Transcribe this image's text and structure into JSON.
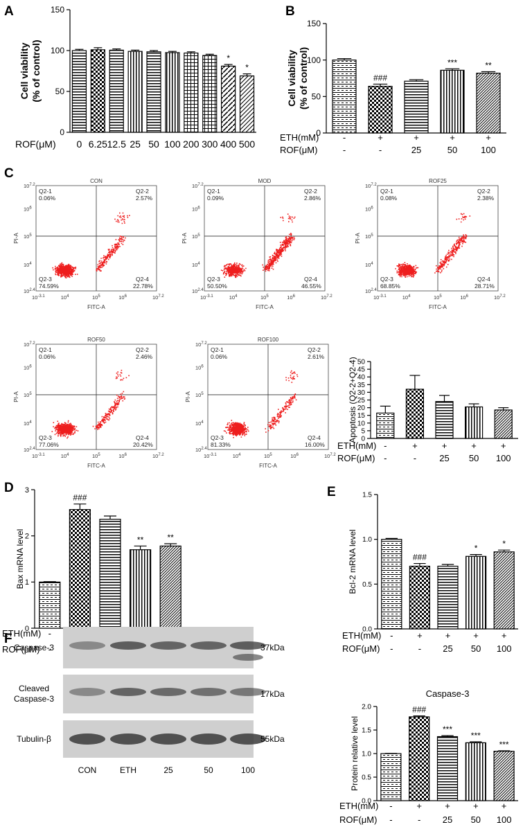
{
  "figure": {
    "panel_labels": {
      "A": "A",
      "B": "B",
      "C": "C",
      "D": "D",
      "E": "E",
      "F": "F"
    }
  },
  "chart_data": [
    {
      "id": "A",
      "type": "bar",
      "ylabel": "Cell viability\n(% of control)",
      "xlabel_prefix": "ROF(μM)",
      "categories": [
        "0",
        "6.25",
        "12.5",
        "25",
        "50",
        "100",
        "200",
        "300",
        "400",
        "500"
      ],
      "values": [
        100,
        101,
        100.5,
        99,
        98.5,
        97.5,
        97,
        94,
        81,
        69
      ],
      "errors": [
        1.5,
        2.5,
        1.5,
        1.5,
        1.5,
        1.5,
        1.5,
        1.5,
        2,
        2.5
      ],
      "sig": [
        "",
        "",
        "",
        "",
        "",
        "",
        "",
        "",
        "*",
        "*"
      ],
      "yticks": [
        0,
        50,
        100,
        150
      ],
      "ylim": [
        0,
        150
      ]
    },
    {
      "id": "B",
      "type": "bar",
      "ylabel": "Cell viability\n(% of control)",
      "row_labels": [
        "ETH(mM)",
        "ROF(μM)"
      ],
      "rows": [
        [
          "-",
          "+",
          "+",
          "+",
          "+"
        ],
        [
          "-",
          "-",
          "25",
          "50",
          "100"
        ]
      ],
      "values": [
        100,
        64,
        71,
        86,
        82
      ],
      "errors": [
        2,
        3,
        2,
        2,
        2
      ],
      "sig": [
        "",
        "###",
        "",
        "***",
        "**"
      ],
      "yticks": [
        0,
        50,
        100,
        150
      ],
      "ylim": [
        0,
        150
      ]
    },
    {
      "id": "C-bar",
      "type": "bar",
      "ylabel": "Apoptosis (Q2-2+Q2-4)",
      "row_labels": [
        "ETH(mM)",
        "ROF(μM)"
      ],
      "rows": [
        [
          "-",
          "+",
          "+",
          "+",
          "+"
        ],
        [
          "-",
          "-",
          "25",
          "50",
          "100"
        ]
      ],
      "values": [
        16.5,
        32,
        24,
        20.5,
        18.5
      ],
      "errors": [
        4.5,
        9,
        4,
        2,
        1.5
      ],
      "sig": [
        "",
        "",
        "",
        "",
        ""
      ],
      "yticks": [
        0,
        5,
        10,
        15,
        20,
        25,
        30,
        35,
        40,
        45,
        50
      ],
      "ylim": [
        0,
        50
      ]
    },
    {
      "id": "D",
      "type": "bar",
      "ylabel": "Bax mRNA level",
      "row_labels": [
        "ETH(mM)",
        "ROF(μM)"
      ],
      "rows": [
        [
          "-",
          "+",
          "+",
          "+",
          "+"
        ],
        [
          "-",
          "-",
          "25",
          "50",
          "100"
        ]
      ],
      "values": [
        1.0,
        2.57,
        2.36,
        1.7,
        1.78
      ],
      "errors": [
        0.01,
        0.12,
        0.07,
        0.08,
        0.05
      ],
      "sig": [
        "",
        "###",
        "",
        "**",
        "**"
      ],
      "yticks": [
        0,
        1,
        2,
        3
      ],
      "ylim": [
        0,
        3
      ]
    },
    {
      "id": "E",
      "type": "bar",
      "ylabel": "Bcl-2 mRNA level",
      "row_labels": [
        "ETH(mM)",
        "ROF(μM)"
      ],
      "rows": [
        [
          "-",
          "+",
          "+",
          "+",
          "+"
        ],
        [
          "-",
          "-",
          "25",
          "50",
          "100"
        ]
      ],
      "values": [
        1.0,
        0.7,
        0.7,
        0.81,
        0.86
      ],
      "errors": [
        0.01,
        0.03,
        0.02,
        0.02,
        0.02
      ],
      "sig": [
        "",
        "###",
        "",
        "*",
        "*"
      ],
      "yticks": [
        "0.0",
        "0.5",
        "1.0",
        "1.5"
      ],
      "ylim": [
        0,
        1.5
      ]
    },
    {
      "id": "F-bar",
      "type": "bar",
      "title": "Caspase-3",
      "ylabel": "Protein relative level",
      "row_labels": [
        "ETH(mM)",
        "ROF(μM)"
      ],
      "rows": [
        [
          "-",
          "+",
          "+",
          "+",
          "+"
        ],
        [
          "-",
          "-",
          "25",
          "50",
          "100"
        ]
      ],
      "values": [
        1.0,
        1.78,
        1.36,
        1.23,
        1.05
      ],
      "errors": [
        0.005,
        0.02,
        0.02,
        0.02,
        0.01
      ],
      "sig": [
        "",
        "###",
        "***",
        "***",
        "***"
      ],
      "yticks": [
        "0.0",
        "0.5",
        "1.0",
        "1.5",
        "2.0"
      ],
      "ylim": [
        0,
        2
      ]
    }
  ],
  "flow_plots": [
    {
      "title": "CON",
      "q1": "Q2-1",
      "q1v": "0.06%",
      "q2": "Q2-2",
      "q2v": "2.57%",
      "q3": "Q2-3",
      "q3v": "74.59%",
      "q4": "Q2-4",
      "q4v": "22.78%",
      "xlabel": "FITC-A",
      "ylabel": "PI-A",
      "xticks": [
        "10",
        "10",
        "10",
        "10",
        "10",
        "10"
      ],
      "xexp": [
        "-3.1",
        "4",
        "5",
        "6",
        "",
        "7.2"
      ],
      "yticks": [
        "10",
        "10",
        "10",
        "10",
        "10"
      ],
      "yexp": [
        "2.4",
        "4",
        "5",
        "6",
        "7.2"
      ]
    },
    {
      "title": "MOD",
      "q1": "Q2-1",
      "q1v": "0.09%",
      "q2": "Q2-2",
      "q2v": "2.86%",
      "q3": "Q2-3",
      "q3v": "50.50%",
      "q4": "Q2-4",
      "q4v": "46.55%",
      "xlabel": "FITC-A",
      "ylabel": "PI-A",
      "xticks": [
        "10",
        "10",
        "10",
        "10",
        "10",
        "10"
      ],
      "xexp": [
        "-3.1",
        "4",
        "5",
        "6",
        "",
        "7.2"
      ],
      "yticks": [
        "10",
        "10",
        "10",
        "10",
        "10"
      ],
      "yexp": [
        "2.4",
        "4",
        "5",
        "6",
        "7.2"
      ]
    },
    {
      "title": "ROF25",
      "q1": "Q2-1",
      "q1v": "0.08%",
      "q2": "Q2-2",
      "q2v": "2.38%",
      "q3": "Q2-3",
      "q3v": "68.85%",
      "q4": "Q2-4",
      "q4v": "28.71%",
      "xlabel": "FITC-A",
      "ylabel": "PI-A",
      "xticks": [
        "10",
        "10",
        "10",
        "10",
        "10",
        "10"
      ],
      "xexp": [
        "-3.1",
        "4",
        "5",
        "6",
        "",
        "7.2"
      ],
      "yticks": [
        "10",
        "10",
        "10",
        "10",
        "10"
      ],
      "yexp": [
        "2.4",
        "4",
        "5",
        "6",
        "7.2"
      ]
    },
    {
      "title": "ROF50",
      "q1": "Q2-1",
      "q1v": "0.06%",
      "q2": "Q2-2",
      "q2v": "2.46%",
      "q3": "Q2-3",
      "q3v": "77.06%",
      "q4": "Q2-4",
      "q4v": "20.42%",
      "xlabel": "FITC-A",
      "ylabel": "PI-A",
      "xticks": [
        "10",
        "10",
        "10",
        "10",
        "10",
        "10"
      ],
      "xexp": [
        "-3.1",
        "4",
        "5",
        "6",
        "",
        "7.2"
      ],
      "yticks": [
        "10",
        "10",
        "10",
        "10",
        "10"
      ],
      "yexp": [
        "2.4",
        "4",
        "5",
        "6",
        "7.2"
      ]
    },
    {
      "title": "ROF100",
      "q1": "Q2-1",
      "q1v": "0.06%",
      "q2": "Q2-2",
      "q2v": "2.61%",
      "q3": "Q2-3",
      "q3v": "81.33%",
      "q4": "Q2-4",
      "q4v": "16.00%",
      "xlabel": "FITC-A",
      "ylabel": "PI-A",
      "xticks": [
        "10",
        "10",
        "10",
        "10",
        "10",
        "10"
      ],
      "xexp": [
        "-3.1",
        "4",
        "5",
        "6",
        "",
        "7.2"
      ],
      "yticks": [
        "10",
        "10",
        "10",
        "10",
        "10"
      ],
      "yexp": [
        "2.4",
        "4",
        "5",
        "6",
        "7.2"
      ]
    }
  ],
  "blot": {
    "rows": [
      "Caspase-3",
      "Cleaved\nCaspase-3",
      "Tubulin-β"
    ],
    "kda": [
      "37kDa",
      "17kDa",
      "55kDa"
    ],
    "lanes": [
      "CON",
      "ETH",
      "25",
      "50",
      "100"
    ]
  },
  "colors": {
    "dot": "#ee1d1d",
    "blot_bg": "#cfcfcf",
    "band": "#3a3a3a"
  }
}
